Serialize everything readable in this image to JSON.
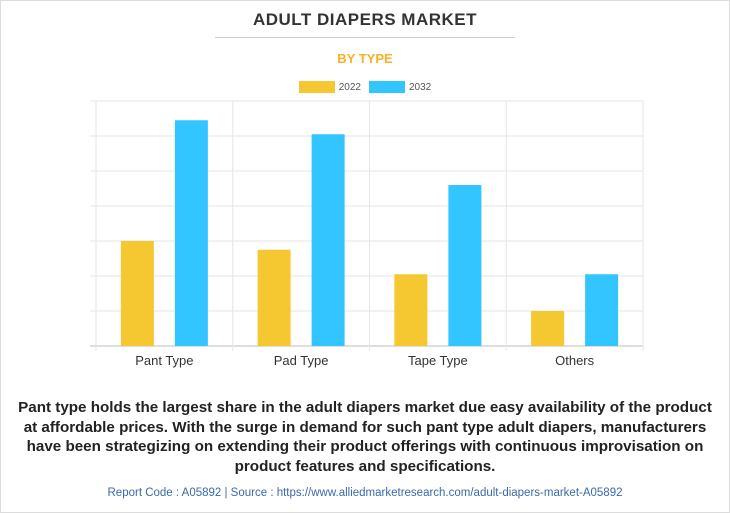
{
  "header": {
    "title": "ADULT DIAPERS MARKET",
    "subtitle": "BY TYPE"
  },
  "chart_data": {
    "type": "bar",
    "categories": [
      "Pant Type",
      "Pad Type",
      "Tape Type",
      "Others"
    ],
    "series": [
      {
        "name": "2022",
        "color": "#f5c731",
        "values": [
          30,
          27.5,
          20.5,
          10
        ]
      },
      {
        "name": "2032",
        "color": "#33c5ff",
        "values": [
          64.5,
          60.5,
          46,
          20.5
        ]
      }
    ],
    "ylim": [
      0,
      70
    ],
    "grid": true,
    "legend_position": "top-center",
    "xlabel": "",
    "ylabel": ""
  },
  "description": "Pant type holds the largest share in the adult diapers market due easy availability of the product at affordable prices. With the surge in demand for such pant type adult diapers, manufacturers have been strategizing on extending their product offerings with continuous improvisation on product features and specifications.",
  "footer": {
    "source": "Report Code : A05892  |  Source : https://www.alliedmarketresearch.com/adult-diapers-market-A05892"
  }
}
